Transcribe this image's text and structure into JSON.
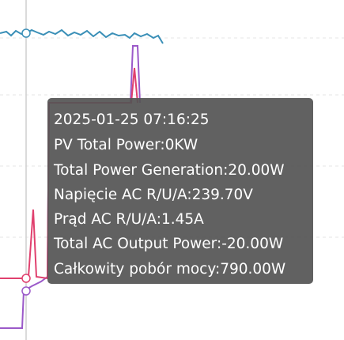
{
  "tooltip": {
    "timestamp": "2025-01-25 07:16:25",
    "lines": [
      "PV Total Power:0KW",
      "Total Power Generation:20.00W",
      "Napięcie AC R/U/A:239.70V",
      "Prąd AC R/U/A:1.45A",
      "Total AC Output Power:-20.00W",
      "Całkowity pobór mocy:790.00W"
    ]
  }
}
